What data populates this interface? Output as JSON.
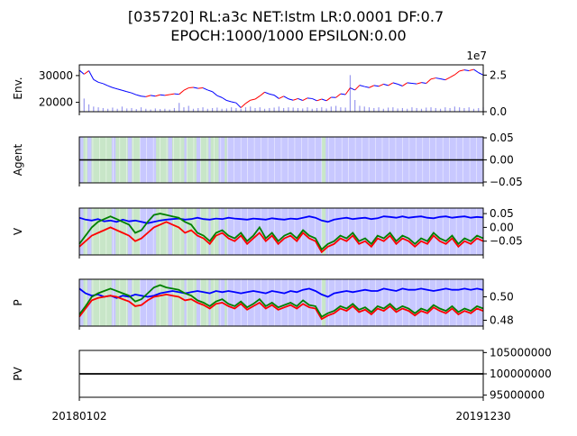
{
  "title_line1": "[035720] RL:a3c NET:lstm LR:0.0001 DF:0.7",
  "title_line2": "EPOCH:1000/1000 EPSILON:0.00",
  "chart_data": [
    {
      "type": "line",
      "panel": "env",
      "ylabel": "Env.",
      "left_ticks": [
        "30000",
        "20000"
      ],
      "left_tick_values": [
        30000,
        20000
      ],
      "right_ticks": [
        "2.5",
        "0.0"
      ],
      "right_tick_values": [
        2.5,
        0.0
      ],
      "right_offset_label": "1e7",
      "ylim": [
        16500,
        34000
      ],
      "right_ylim": [
        0,
        3.2
      ],
      "series": [
        {
          "values": [
            32000,
            30500,
            31800,
            28500,
            27500,
            27000,
            26200,
            25500,
            25000,
            24500,
            24000,
            23500,
            22800,
            22300,
            22100,
            22600,
            22300,
            22800,
            22600,
            22900,
            23200,
            23000,
            24500,
            25400,
            25600,
            25200,
            25400,
            24600,
            24000,
            22500,
            21800,
            20700,
            20200,
            19800,
            18000,
            19600,
            20800,
            21200,
            22400,
            23800,
            23100,
            22700,
            21400,
            22300,
            21300,
            20800,
            21400,
            20700,
            21600,
            21400,
            20600,
            21200,
            20600,
            21900,
            21800,
            23200,
            22900,
            25400,
            24600,
            26400,
            25900,
            25500,
            26300,
            26000,
            26800,
            26300,
            27300,
            26800,
            26100,
            27300,
            27100,
            26900,
            27400,
            27100,
            28700,
            29100,
            28800,
            28400,
            29300,
            30300,
            31700,
            32100,
            31800,
            32300,
            31100,
            30200
          ]
        }
      ],
      "volume": [
        0.55,
        0.9,
        0.5,
        0.35,
        0.3,
        0.25,
        0.2,
        0.28,
        0.2,
        0.35,
        0.22,
        0.25,
        0.18,
        0.3,
        0.2,
        0.15,
        0.22,
        0.18,
        0.2,
        0.15,
        0.25,
        0.6,
        0.3,
        0.4,
        0.2,
        0.25,
        0.3,
        0.2,
        0.25,
        0.28,
        0.2,
        0.22,
        0.3,
        0.25,
        0.2,
        0.3,
        0.35,
        0.25,
        0.3,
        0.2,
        0.25,
        0.28,
        0.35,
        0.25,
        0.3,
        0.28,
        0.25,
        0.22,
        0.3,
        0.2,
        0.25,
        0.3,
        0.22,
        0.35,
        0.4,
        0.3,
        0.28,
        2.5,
        0.8,
        0.4,
        0.35,
        0.3,
        0.25,
        0.3,
        0.2,
        0.28,
        0.3,
        0.22,
        0.25,
        0.2,
        0.3,
        0.25,
        0.2,
        0.28,
        0.3,
        0.25,
        0.2,
        0.3,
        0.25,
        0.35,
        0.3,
        0.25,
        0.3,
        0.2,
        0.25,
        0.3
      ]
    },
    {
      "type": "area",
      "panel": "agent",
      "ylabel": "Agent",
      "right_ticks": [
        "0.05",
        "0.00",
        "−0.05"
      ],
      "right_tick_values": [
        0.05,
        0.0,
        -0.05
      ],
      "ylim": [
        -0.052,
        0.052
      ],
      "series": [
        {
          "values": [
            0,
            0
          ]
        }
      ]
    },
    {
      "type": "line",
      "panel": "v",
      "ylabel": "V",
      "right_ticks": [
        "0.05",
        "0.00",
        "−0.05"
      ],
      "right_tick_values": [
        0.05,
        0.0,
        -0.05
      ],
      "ylim": [
        -0.1,
        0.07
      ],
      "series": [
        {
          "color": "#0000ff",
          "values": [
            0.035,
            0.028,
            0.025,
            0.03,
            0.022,
            0.025,
            0.02,
            0.028,
            0.022,
            0.025,
            0.02,
            0.015,
            0.02,
            0.025,
            0.028,
            0.03,
            0.032,
            0.028,
            0.03,
            0.035,
            0.03,
            0.028,
            0.032,
            0.03,
            0.035,
            0.032,
            0.03,
            0.028,
            0.032,
            0.03,
            0.028,
            0.033,
            0.03,
            0.028,
            0.032,
            0.03,
            0.035,
            0.04,
            0.035,
            0.025,
            0.02,
            0.028,
            0.032,
            0.035,
            0.03,
            0.033,
            0.035,
            0.03,
            0.033,
            0.04,
            0.038,
            0.035,
            0.04,
            0.035,
            0.038,
            0.04,
            0.035,
            0.033,
            0.038,
            0.04,
            0.035,
            0.038,
            0.04,
            0.035,
            0.038,
            0.036
          ]
        },
        {
          "color": "#ff0000",
          "values": [
            -0.07,
            -0.05,
            -0.03,
            -0.02,
            -0.01,
            0.0,
            -0.01,
            -0.02,
            -0.03,
            -0.05,
            -0.04,
            -0.02,
            0.0,
            0.01,
            0.02,
            0.01,
            0.0,
            -0.02,
            -0.01,
            -0.03,
            -0.04,
            -0.06,
            -0.03,
            -0.02,
            -0.04,
            -0.05,
            -0.03,
            -0.06,
            -0.04,
            -0.02,
            -0.05,
            -0.03,
            -0.06,
            -0.04,
            -0.03,
            -0.05,
            -0.02,
            -0.04,
            -0.05,
            -0.09,
            -0.07,
            -0.06,
            -0.04,
            -0.05,
            -0.03,
            -0.06,
            -0.05,
            -0.07,
            -0.04,
            -0.05,
            -0.03,
            -0.06,
            -0.04,
            -0.05,
            -0.07,
            -0.05,
            -0.06,
            -0.03,
            -0.05,
            -0.06,
            -0.04,
            -0.07,
            -0.05,
            -0.06,
            -0.04,
            -0.05
          ]
        },
        {
          "color": "#008000",
          "values": [
            -0.06,
            -0.03,
            0.0,
            0.02,
            0.03,
            0.04,
            0.03,
            0.02,
            0.01,
            -0.02,
            -0.01,
            0.02,
            0.045,
            0.05,
            0.045,
            0.04,
            0.035,
            0.02,
            0.01,
            -0.02,
            -0.03,
            -0.05,
            -0.02,
            -0.01,
            -0.03,
            -0.04,
            -0.02,
            -0.05,
            -0.03,
            0.0,
            -0.04,
            -0.02,
            -0.05,
            -0.03,
            -0.02,
            -0.04,
            -0.01,
            -0.03,
            -0.04,
            -0.08,
            -0.06,
            -0.05,
            -0.03,
            -0.04,
            -0.02,
            -0.05,
            -0.04,
            -0.06,
            -0.03,
            -0.04,
            -0.02,
            -0.05,
            -0.03,
            -0.04,
            -0.06,
            -0.04,
            -0.05,
            -0.02,
            -0.04,
            -0.05,
            -0.03,
            -0.06,
            -0.04,
            -0.05,
            -0.03,
            -0.04
          ]
        }
      ]
    },
    {
      "type": "line",
      "panel": "p",
      "ylabel": "P",
      "right_ticks": [
        "0.50",
        "0.48"
      ],
      "right_tick_values": [
        0.5,
        0.48
      ],
      "ylim": [
        0.475,
        0.515
      ],
      "series": [
        {
          "color": "#0000ff",
          "values": [
            0.507,
            0.503,
            0.501,
            0.502,
            0.5,
            0.501,
            0.499,
            0.501,
            0.5,
            0.502,
            0.501,
            0.5,
            0.501,
            0.503,
            0.504,
            0.505,
            0.504,
            0.503,
            0.504,
            0.505,
            0.504,
            0.503,
            0.505,
            0.504,
            0.505,
            0.504,
            0.503,
            0.504,
            0.505,
            0.504,
            0.503,
            0.505,
            0.504,
            0.503,
            0.505,
            0.504,
            0.506,
            0.507,
            0.505,
            0.502,
            0.5,
            0.503,
            0.504,
            0.505,
            0.504,
            0.505,
            0.506,
            0.505,
            0.505,
            0.507,
            0.506,
            0.505,
            0.507,
            0.506,
            0.506,
            0.507,
            0.506,
            0.505,
            0.506,
            0.507,
            0.506,
            0.506,
            0.507,
            0.506,
            0.507,
            0.506
          ]
        },
        {
          "color": "#ff0000",
          "values": [
            0.483,
            0.49,
            0.497,
            0.499,
            0.5,
            0.501,
            0.5,
            0.498,
            0.496,
            0.492,
            0.493,
            0.497,
            0.5,
            0.501,
            0.502,
            0.501,
            0.5,
            0.497,
            0.498,
            0.495,
            0.493,
            0.49,
            0.494,
            0.495,
            0.492,
            0.49,
            0.494,
            0.489,
            0.492,
            0.495,
            0.49,
            0.493,
            0.489,
            0.491,
            0.493,
            0.49,
            0.494,
            0.491,
            0.49,
            0.481,
            0.484,
            0.486,
            0.49,
            0.488,
            0.492,
            0.487,
            0.489,
            0.485,
            0.49,
            0.488,
            0.492,
            0.487,
            0.49,
            0.488,
            0.484,
            0.488,
            0.486,
            0.491,
            0.488,
            0.486,
            0.49,
            0.485,
            0.488,
            0.486,
            0.49,
            0.488
          ]
        },
        {
          "color": "#008000",
          "values": [
            0.485,
            0.492,
            0.5,
            0.503,
            0.505,
            0.507,
            0.505,
            0.503,
            0.501,
            0.496,
            0.498,
            0.503,
            0.508,
            0.51,
            0.508,
            0.507,
            0.506,
            0.503,
            0.501,
            0.497,
            0.495,
            0.492,
            0.496,
            0.498,
            0.494,
            0.492,
            0.496,
            0.491,
            0.494,
            0.498,
            0.492,
            0.495,
            0.491,
            0.493,
            0.495,
            0.492,
            0.497,
            0.493,
            0.492,
            0.483,
            0.486,
            0.488,
            0.492,
            0.49,
            0.494,
            0.489,
            0.491,
            0.487,
            0.492,
            0.49,
            0.494,
            0.489,
            0.492,
            0.49,
            0.486,
            0.49,
            0.488,
            0.493,
            0.49,
            0.488,
            0.492,
            0.487,
            0.49,
            0.488,
            0.492,
            0.49
          ]
        }
      ]
    },
    {
      "type": "line",
      "panel": "pv",
      "ylabel": "PV",
      "right_ticks": [
        "105000000",
        "100000000",
        "95000000"
      ],
      "right_tick_values": [
        105000000,
        100000000,
        95000000
      ],
      "ylim": [
        94500000,
        105500000
      ],
      "series": [
        {
          "color": "#000000",
          "values": [
            100000000,
            100000000
          ]
        }
      ]
    }
  ],
  "x_tick_labels": [
    "20180102",
    "20191230"
  ],
  "colors": {
    "blue_shade": "#c8c8ff",
    "green_shade": "#c8e6c8",
    "price_up": "#ff0000",
    "price_down": "#0000ff",
    "volume": "#9999ee"
  },
  "action_regions": [
    {
      "action": "hold",
      "color": "green",
      "start": 0.01,
      "end": 0.02
    },
    {
      "action": "hold",
      "color": "green",
      "start": 0.03,
      "end": 0.08
    },
    {
      "action": "hold",
      "color": "green",
      "start": 0.09,
      "end": 0.12
    },
    {
      "action": "hold",
      "color": "green",
      "start": 0.13,
      "end": 0.15
    },
    {
      "action": "hold",
      "color": "green",
      "start": 0.19,
      "end": 0.22
    },
    {
      "action": "hold",
      "color": "green",
      "start": 0.23,
      "end": 0.26
    },
    {
      "action": "hold",
      "color": "green",
      "start": 0.265,
      "end": 0.29
    },
    {
      "action": "hold",
      "color": "green",
      "start": 0.3,
      "end": 0.32
    },
    {
      "action": "hold",
      "color": "green",
      "start": 0.325,
      "end": 0.345
    },
    {
      "action": "hold",
      "color": "green",
      "start": 0.36,
      "end": 0.365
    },
    {
      "action": "hold",
      "color": "green",
      "start": 0.6,
      "end": 0.61
    }
  ]
}
